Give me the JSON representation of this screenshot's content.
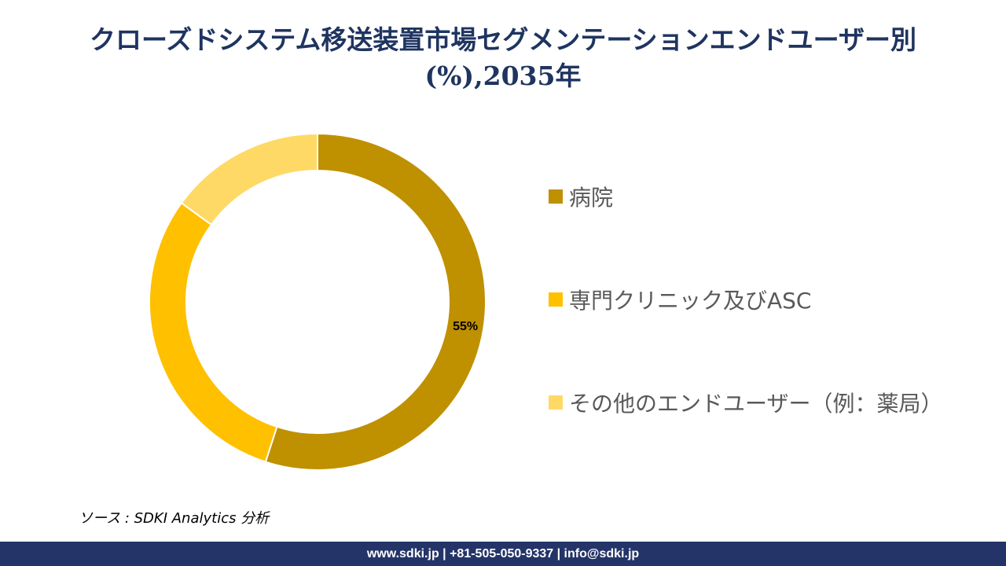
{
  "chart_data": {
    "type": "pie",
    "donut": true,
    "title_lines": [
      "クローズドシステム移送装置市場セグメンテーションエンドユーザー別",
      "(%),2035年"
    ],
    "series": [
      {
        "name": "病院",
        "value": 55,
        "color": "#bf9000",
        "label": "55%"
      },
      {
        "name": "専門クリニック及びASC",
        "value": 30,
        "color": "#ffc000",
        "label": ""
      },
      {
        "name": "その他のエンドユーザー（例：薬局）",
        "value": 15,
        "color": "#ffd966",
        "label": ""
      }
    ],
    "legend_position": "right"
  },
  "source": "ソース : SDKI Analytics 分析",
  "footer": "www.sdki.jp | +81-505-050-9337 | info@sdki.jp"
}
